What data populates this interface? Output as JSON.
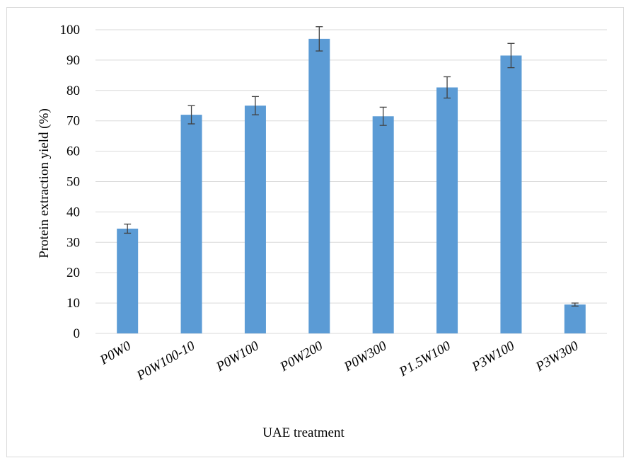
{
  "chart_data": {
    "type": "bar",
    "title": "",
    "xlabel": "UAE treatment",
    "ylabel": "Protein extraction yield (%)",
    "ylim": [
      0,
      100
    ],
    "yticks": [
      "0",
      "10",
      "20",
      "30",
      "40",
      "50",
      "60",
      "70",
      "80",
      "90",
      "100"
    ],
    "grid": true,
    "categories": [
      "P0W0",
      "P0W100-10",
      "P0W100",
      "P0W200",
      "P0W300",
      "P1.5W100",
      "P3W100",
      "P3W300"
    ],
    "series": [
      {
        "values": [
          34.5,
          72,
          75,
          97,
          71.5,
          81,
          91.5,
          9.5
        ],
        "errors": [
          1.5,
          3,
          3,
          4,
          3,
          3.5,
          4,
          0.5
        ]
      }
    ],
    "colors": {
      "bar": "#5b9bd5",
      "grid": "#d9d9d9",
      "error_bar": "#404040"
    }
  }
}
